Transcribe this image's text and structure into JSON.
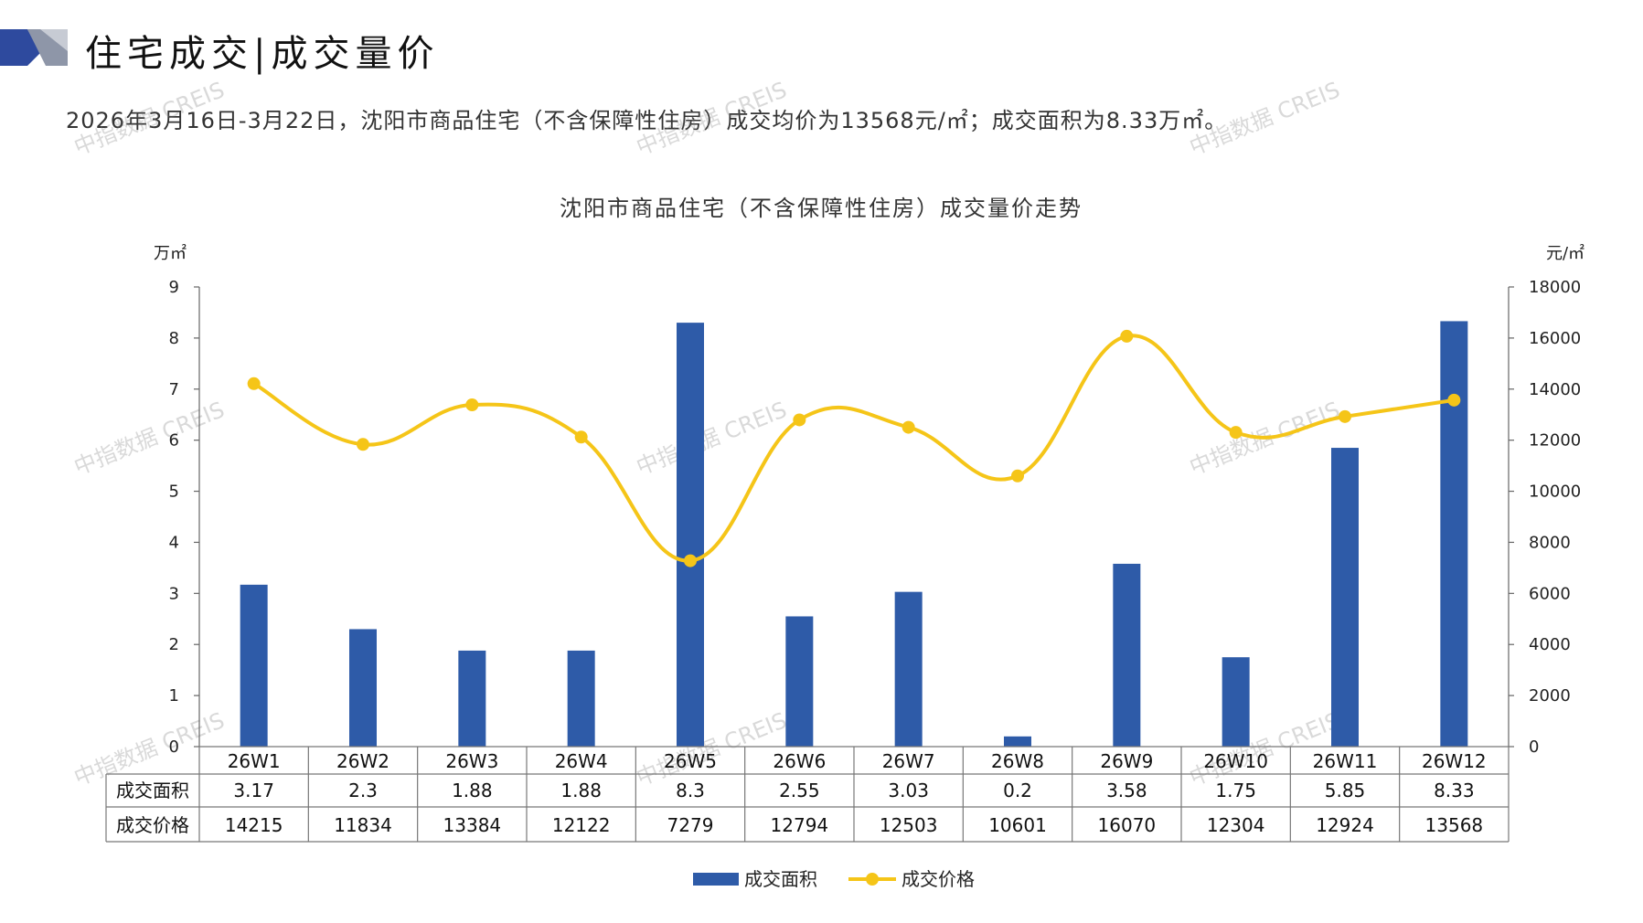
{
  "header": {
    "title": "住宅成交|成交量价"
  },
  "summary": "2026年3月16日-3月22日，沈阳市商品住宅（不含保障性住房）成交均价为13568元/㎡；成交面积为8.33万㎡。",
  "watermark": "中指数据 CREIS",
  "colors": {
    "bar": "#2E5BA8",
    "line": "#F5C518",
    "logo_dark": "#2E4A9E",
    "logo_gray": "#8E96A8"
  },
  "chart_data": {
    "type": "bar+line",
    "title": "沈阳市商品住宅（不含保障性住房）成交量价走势",
    "y_left_label": "万㎡",
    "y_right_label": "元/㎡",
    "y_left_lim": [
      0,
      9
    ],
    "y_right_lim": [
      0,
      18000
    ],
    "y_left_ticks": [
      "0",
      "1",
      "2",
      "3",
      "4",
      "5",
      "6",
      "7",
      "8",
      "9"
    ],
    "y_right_ticks": [
      "0",
      "2000",
      "4000",
      "6000",
      "8000",
      "10000",
      "12000",
      "14000",
      "16000",
      "18000"
    ],
    "categories": [
      "26W1",
      "26W2",
      "26W3",
      "26W4",
      "26W5",
      "26W6",
      "26W7",
      "26W8",
      "26W9",
      "26W10",
      "26W11",
      "26W12"
    ],
    "series": [
      {
        "name": "成交面积",
        "type": "bar",
        "axis": "left",
        "values": [
          3.17,
          2.3,
          1.88,
          1.88,
          8.3,
          2.55,
          3.03,
          0.2,
          3.58,
          1.75,
          5.85,
          8.33
        ],
        "labels": [
          "3.17",
          "2.3",
          "1.88",
          "1.88",
          "8.3",
          "2.55",
          "3.03",
          "0.2",
          "3.58",
          "1.75",
          "5.85",
          "8.33"
        ]
      },
      {
        "name": "成交价格",
        "type": "line",
        "axis": "right",
        "values": [
          14215,
          11834,
          13384,
          12122,
          7279,
          12794,
          12503,
          10601,
          16070,
          12304,
          12924,
          13568
        ],
        "labels": [
          "14215",
          "11834",
          "13384",
          "12122",
          "7279",
          "12794",
          "12503",
          "10601",
          "16070",
          "12304",
          "12924",
          "13568"
        ]
      }
    ],
    "legend_position": "bottom"
  }
}
